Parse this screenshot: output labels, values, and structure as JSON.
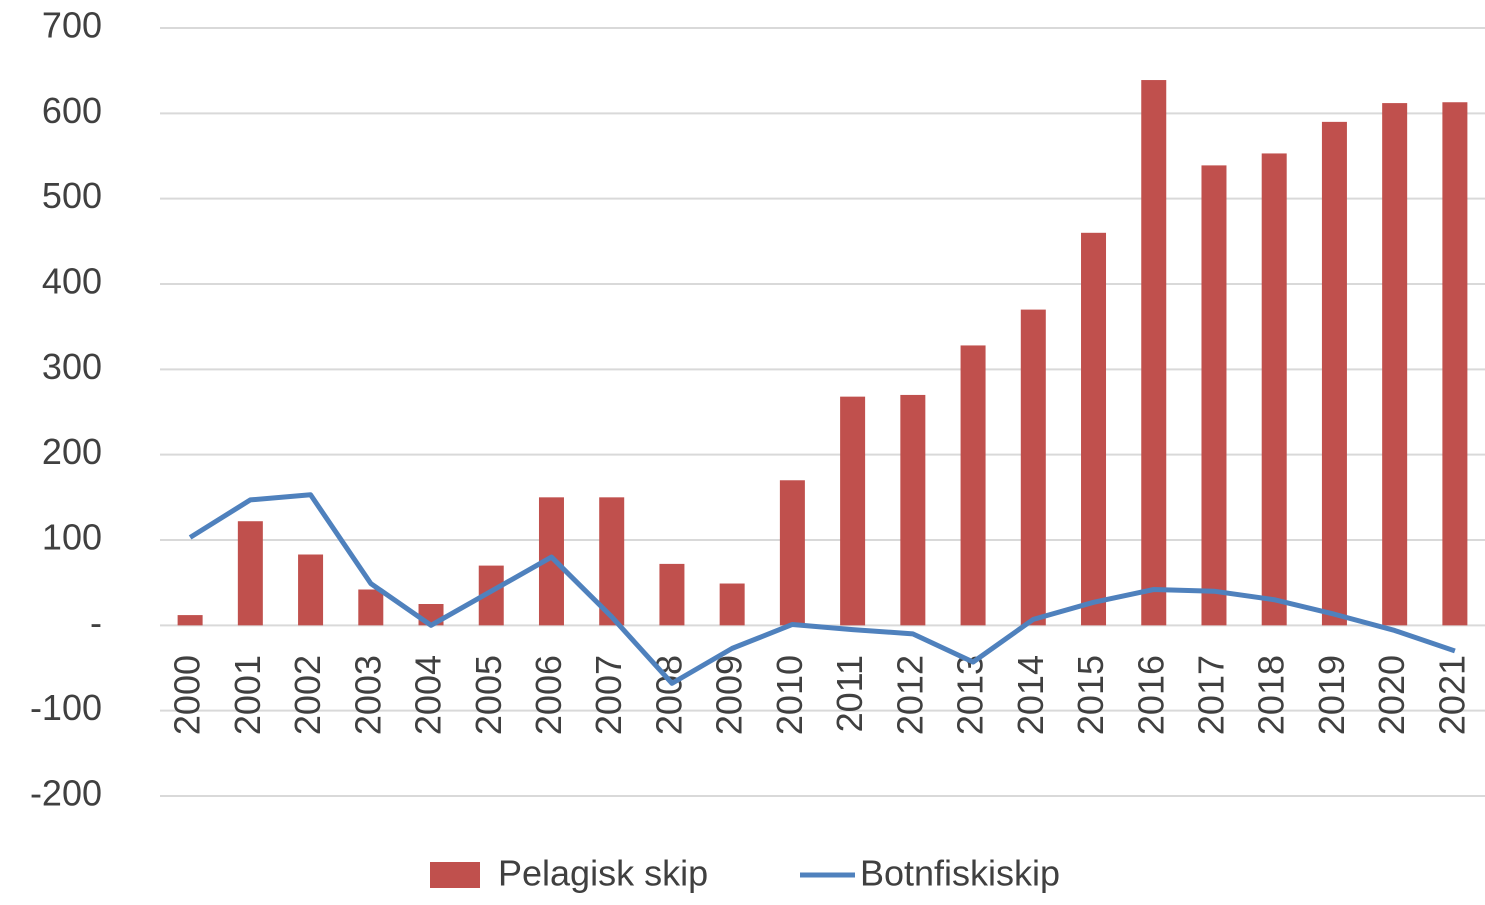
{
  "chart_data": {
    "type": "bar_line",
    "categories": [
      "2000",
      "2001",
      "2002",
      "2003",
      "2004",
      "2005",
      "2006",
      "2007",
      "2008",
      "2009",
      "2010",
      "2011",
      "2012",
      "2013",
      "2014",
      "2015",
      "2016",
      "2017",
      "2018",
      "2019",
      "2020",
      "2021"
    ],
    "series": [
      {
        "name": "Pelagisk skip",
        "type": "bar",
        "color": "#c0504d",
        "values": [
          12,
          122,
          83,
          42,
          25,
          70,
          150,
          150,
          72,
          49,
          170,
          268,
          270,
          328,
          370,
          460,
          639,
          539,
          553,
          590,
          612,
          613
        ]
      },
      {
        "name": "Botnfiskiskip",
        "type": "line",
        "color": "#4f81bd",
        "values": [
          103,
          147,
          153,
          49,
          0,
          40,
          80,
          10,
          -68,
          -27,
          1,
          -5,
          -10,
          -43,
          7,
          27,
          42,
          40,
          30,
          13,
          -6,
          -30
        ]
      }
    ],
    "ylim": [
      -200,
      700
    ],
    "yticks": [
      -200,
      -100,
      {
        "value": 0,
        "label": "-"
      },
      100,
      200,
      300,
      400,
      500,
      600,
      700
    ],
    "grid": true,
    "legend": "bottom"
  }
}
